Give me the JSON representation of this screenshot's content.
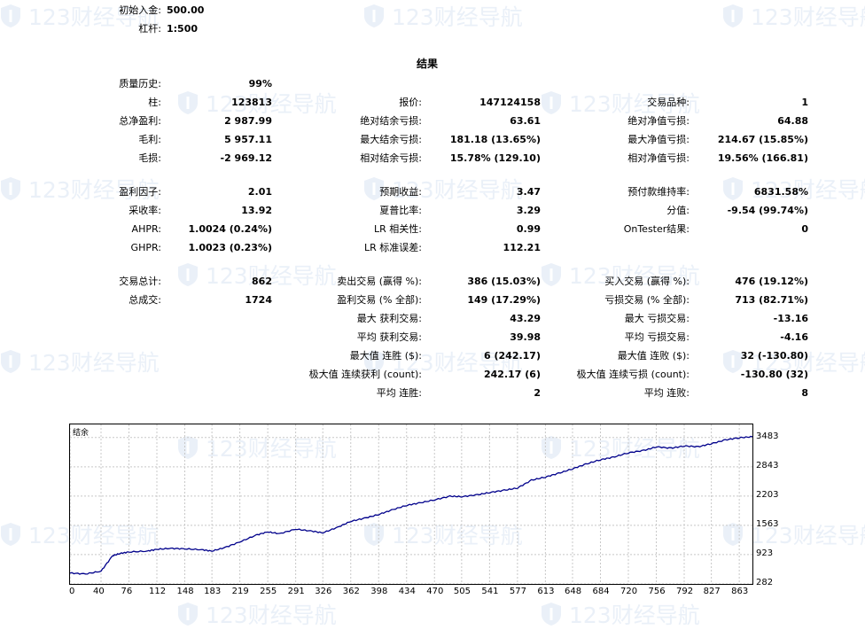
{
  "header": {
    "initial_deposit_label": "初始入金:",
    "initial_deposit_value": "500.00",
    "leverage_label": "杠杆:",
    "leverage_value": "1:500"
  },
  "section_title": "结果",
  "watermark_text": "123财经导航",
  "rows": [
    {
      "c1_label": "质量历史:",
      "c1_value": "99%",
      "c2_label": "",
      "c2_value": "",
      "c3_label": "",
      "c3_value": ""
    },
    {
      "c1_label": "柱:",
      "c1_value": "123813",
      "c2_label": "报价:",
      "c2_value": "147124158",
      "c3_label": "交易品种:",
      "c3_value": "1"
    },
    {
      "c1_label": "总净盈利:",
      "c1_value": "2 987.99",
      "c2_label": "绝对结余亏损:",
      "c2_value": "63.61",
      "c3_label": "绝对净值亏损:",
      "c3_value": "64.88"
    },
    {
      "c1_label": "毛利:",
      "c1_value": "5 957.11",
      "c2_label": "最大结余亏损:",
      "c2_value": "181.18 (13.65%)",
      "c3_label": "最大净值亏损:",
      "c3_value": "214.67 (15.85%)"
    },
    {
      "c1_label": "毛损:",
      "c1_value": "-2 969.12",
      "c2_label": "相对结余亏损:",
      "c2_value": "15.78% (129.10)",
      "c3_label": "相对净值亏损:",
      "c3_value": "19.56% (166.81)"
    },
    {
      "c1_label": "盈利因子:",
      "c1_value": "2.01",
      "c2_label": "预期收益:",
      "c2_value": "3.47",
      "c3_label": "预付款维持率:",
      "c3_value": "6831.58%"
    },
    {
      "c1_label": "采收率:",
      "c1_value": "13.92",
      "c2_label": "夏普比率:",
      "c2_value": "3.29",
      "c3_label": "分值:",
      "c3_value": "-9.54 (99.74%)"
    },
    {
      "c1_label": "AHPR:",
      "c1_value": "1.0024 (0.24%)",
      "c2_label": "LR 相关性:",
      "c2_value": "0.99",
      "c3_label": "OnTester结果:",
      "c3_value": "0"
    },
    {
      "c1_label": "GHPR:",
      "c1_value": "1.0023 (0.23%)",
      "c2_label": "LR 标准误差:",
      "c2_value": "112.21",
      "c3_label": "",
      "c3_value": ""
    },
    {
      "c1_label": "交易总计:",
      "c1_value": "862",
      "c2_label": "卖出交易 (赢得 %):",
      "c2_value": "386 (15.03%)",
      "c3_label": "买入交易 (赢得 %):",
      "c3_value": "476 (19.12%)"
    },
    {
      "c1_label": "总成交:",
      "c1_value": "1724",
      "c2_label": "盈利交易 (% 全部):",
      "c2_value": "149 (17.29%)",
      "c3_label": "亏损交易 (% 全部):",
      "c3_value": "713 (82.71%)"
    },
    {
      "c1_label": "",
      "c1_value": "",
      "c2_label": "最大 获利交易:",
      "c2_value": "43.29",
      "c3_label": "最大 亏损交易:",
      "c3_value": "-13.16"
    },
    {
      "c1_label": "",
      "c1_value": "",
      "c2_label": "平均 获利交易:",
      "c2_value": "39.98",
      "c3_label": "平均 亏损交易:",
      "c3_value": "-4.16"
    },
    {
      "c1_label": "",
      "c1_value": "",
      "c2_label": "最大值 连胜 ($):",
      "c2_value": "6 (242.17)",
      "c3_label": "最大值 连败 ($):",
      "c3_value": "32 (-130.80)"
    },
    {
      "c1_label": "",
      "c1_value": "",
      "c2_label": "极大值 连续获利 (count):",
      "c2_value": "242.17 (6)",
      "c3_label": "极大值 连续亏损 (count):",
      "c3_value": "-130.80 (32)"
    },
    {
      "c1_label": "",
      "c1_value": "",
      "c2_label": "平均 连胜:",
      "c2_value": "2",
      "c3_label": "平均 连败:",
      "c3_value": "8"
    }
  ],
  "chart_data": {
    "type": "line",
    "legend": "结余",
    "x_ticks": [
      0,
      40,
      76,
      112,
      148,
      183,
      219,
      255,
      291,
      326,
      362,
      398,
      434,
      470,
      505,
      541,
      577,
      613,
      648,
      684,
      720,
      756,
      792,
      827,
      863
    ],
    "y_ticks": [
      282,
      923,
      1563,
      2203,
      2843,
      3483
    ],
    "xlim": [
      0,
      880
    ],
    "ylim": [
      282,
      3770
    ],
    "grid": true,
    "line_color": "#00008b",
    "series": [
      {
        "x": [
          0,
          20,
          40,
          55,
          65,
          76,
          100,
          112,
          130,
          148,
          170,
          183,
          200,
          219,
          240,
          255,
          270,
          291,
          310,
          326,
          345,
          362,
          380,
          398,
          415,
          434,
          450,
          470,
          490,
          505,
          525,
          541,
          560,
          577,
          595,
          613,
          630,
          648,
          665,
          684,
          700,
          720,
          740,
          756,
          775,
          792,
          810,
          827,
          845,
          863,
          880
        ],
        "y": [
          520,
          500,
          560,
          900,
          950,
          980,
          1000,
          1040,
          1060,
          1050,
          1030,
          1000,
          1080,
          1200,
          1350,
          1420,
          1380,
          1480,
          1440,
          1400,
          1520,
          1650,
          1720,
          1800,
          1900,
          2000,
          2050,
          2120,
          2200,
          2190,
          2230,
          2280,
          2330,
          2380,
          2550,
          2620,
          2700,
          2800,
          2900,
          3000,
          3050,
          3150,
          3200,
          3280,
          3250,
          3300,
          3280,
          3350,
          3430,
          3480,
          3500
        ]
      }
    ]
  }
}
